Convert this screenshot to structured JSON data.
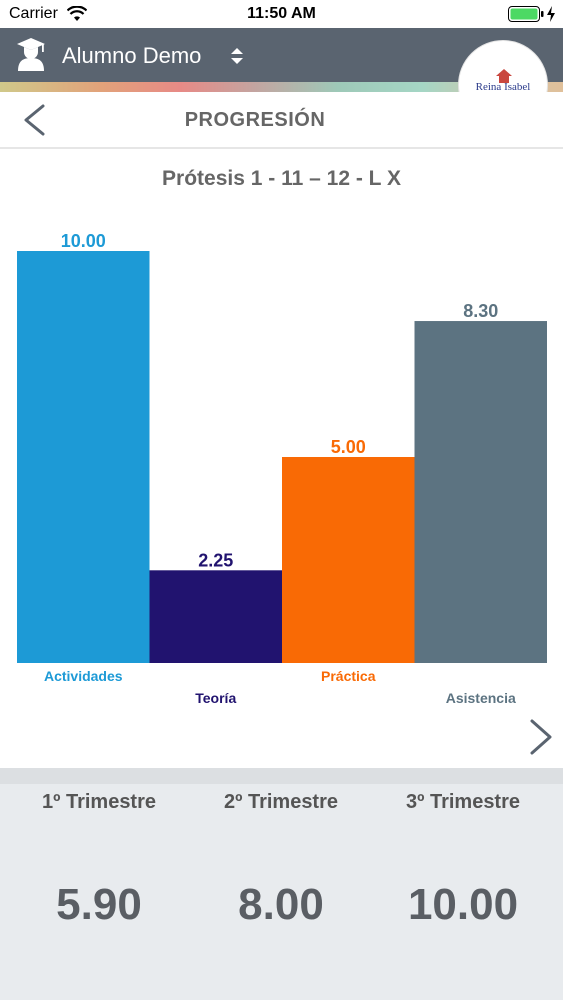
{
  "status_bar": {
    "carrier": "Carrier",
    "time": "11:50 AM"
  },
  "header": {
    "student_name": "Alumno Demo",
    "logo_text": "Reina Isabel"
  },
  "nav": {
    "title": "PROGRESIÓN"
  },
  "chart_data": {
    "type": "bar",
    "title": "Prótesis 1 - 11 – 12 - L X",
    "categories": [
      "Actividades",
      "Teoría",
      "Práctica",
      "Asistencia"
    ],
    "values": [
      10.0,
      2.25,
      5.0,
      8.3
    ],
    "value_labels": [
      "10.00",
      "2.25",
      "5.00",
      "8.30"
    ],
    "colors": [
      "#1d9ad6",
      "#21136f",
      "#f96a05",
      "#5c7381"
    ],
    "ylim": [
      0,
      10
    ],
    "grid": false,
    "legend": "none"
  },
  "summary": {
    "terms": [
      {
        "label": "1º Trimestre",
        "value": "5.90"
      },
      {
        "label": "2º Trimestre",
        "value": "8.00"
      },
      {
        "label": "3º Trimestre",
        "value": "10.00"
      }
    ]
  }
}
